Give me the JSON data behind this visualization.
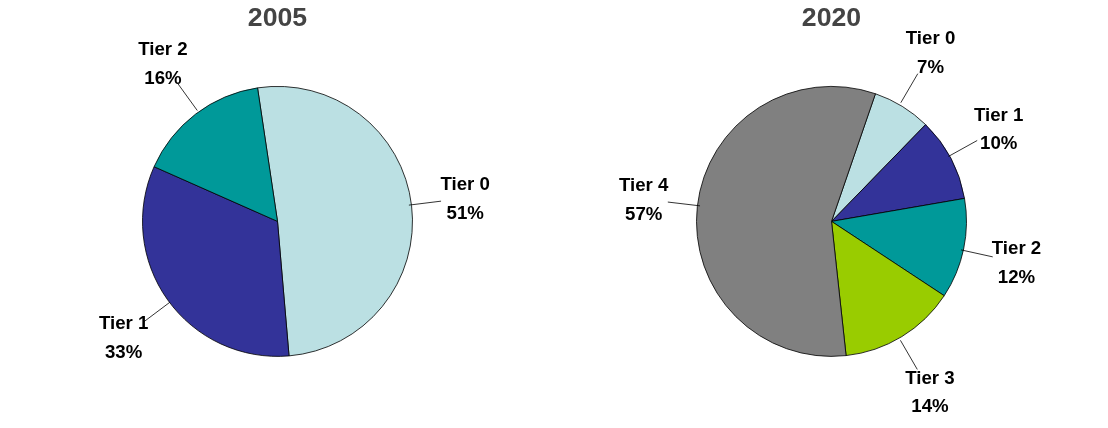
{
  "chart_data": [
    {
      "type": "pie",
      "title": "2005",
      "categories": [
        "Tier 0",
        "Tier 1",
        "Tier 2"
      ],
      "values": [
        51,
        33,
        16
      ],
      "colors": [
        "#bbe0e3",
        "#333399",
        "#009999"
      ],
      "value_labels": [
        "51%",
        "33%",
        "16%"
      ]
    },
    {
      "type": "pie",
      "title": "2020",
      "categories": [
        "Tier 0",
        "Tier 1",
        "Tier 2",
        "Tier 3",
        "Tier 4"
      ],
      "values": [
        7,
        10,
        12,
        14,
        57
      ],
      "colors": [
        "#bbe0e3",
        "#333399",
        "#009999",
        "#99cc00",
        "#808080"
      ],
      "value_labels": [
        "7%",
        "10%",
        "12%",
        "14%",
        "57%"
      ]
    }
  ]
}
